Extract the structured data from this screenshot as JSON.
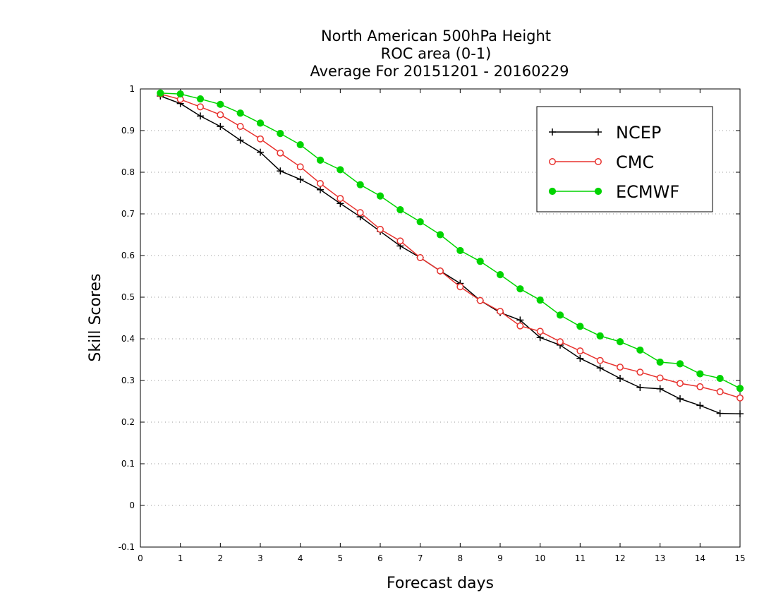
{
  "chart_data": {
    "type": "line",
    "title_lines": [
      "North American 500hPa Height",
      "ROC area (0-1)",
      "Average For 20151201 - 20160229"
    ],
    "xlabel": "Forecast days",
    "ylabel": "Skill Scores",
    "xlim": [
      0,
      15
    ],
    "ylim": [
      -0.1,
      1
    ],
    "x_ticks": [
      0,
      1,
      2,
      3,
      4,
      5,
      6,
      7,
      8,
      9,
      10,
      11,
      12,
      13,
      14,
      15
    ],
    "x_tick_labels": [
      "0",
      "1",
      "2",
      "3",
      "4",
      "5",
      "6",
      "7",
      "8",
      "9",
      "10",
      "11",
      "12",
      "13",
      "14",
      "15"
    ],
    "y_ticks": [
      -0.1,
      0,
      0.1,
      0.2,
      0.3,
      0.4,
      0.5,
      0.6,
      0.7,
      0.8,
      0.9,
      1
    ],
    "y_tick_labels": [
      "-0.1",
      "0",
      "0.1",
      "0.2",
      "0.3",
      "0.4",
      "0.5",
      "0.6",
      "0.7",
      "0.8",
      "0.9",
      "1"
    ],
    "grid": "horizontal dotted",
    "legend_position": "top-right",
    "x": [
      0.5,
      1,
      1.5,
      2,
      2.5,
      3,
      3.5,
      4,
      4.5,
      5,
      5.5,
      6,
      6.5,
      7,
      7.5,
      8,
      8.5,
      9,
      9.5,
      10,
      10.5,
      11,
      11.5,
      12,
      12.5,
      13,
      13.5,
      14,
      14.5,
      15
    ],
    "series": [
      {
        "name": "NCEP",
        "color": "#000000",
        "marker": "plus",
        "values": [
          0.983,
          0.965,
          0.935,
          0.91,
          0.877,
          0.848,
          0.803,
          0.783,
          0.758,
          0.725,
          0.693,
          0.658,
          0.623,
          0.595,
          0.563,
          0.533,
          0.492,
          0.463,
          0.445,
          0.403,
          0.385,
          0.353,
          0.33,
          0.305,
          0.283,
          0.28,
          0.256,
          0.24,
          0.221,
          0.22
        ]
      },
      {
        "name": "CMC",
        "color": "#e8322e",
        "marker": "open-circle",
        "values": [
          0.988,
          0.975,
          0.957,
          0.938,
          0.91,
          0.88,
          0.846,
          0.813,
          0.773,
          0.737,
          0.703,
          0.663,
          0.635,
          0.595,
          0.563,
          0.525,
          0.492,
          0.466,
          0.431,
          0.418,
          0.393,
          0.371,
          0.348,
          0.332,
          0.32,
          0.306,
          0.293,
          0.285,
          0.273,
          0.258
        ]
      },
      {
        "name": "ECMWF",
        "color": "#00d400",
        "marker": "filled-circle",
        "values": [
          0.99,
          0.988,
          0.976,
          0.963,
          0.942,
          0.918,
          0.893,
          0.866,
          0.829,
          0.806,
          0.77,
          0.743,
          0.71,
          0.681,
          0.65,
          0.612,
          0.586,
          0.554,
          0.52,
          0.493,
          0.457,
          0.43,
          0.407,
          0.393,
          0.373,
          0.344,
          0.34,
          0.316,
          0.305,
          0.281
        ]
      }
    ]
  }
}
